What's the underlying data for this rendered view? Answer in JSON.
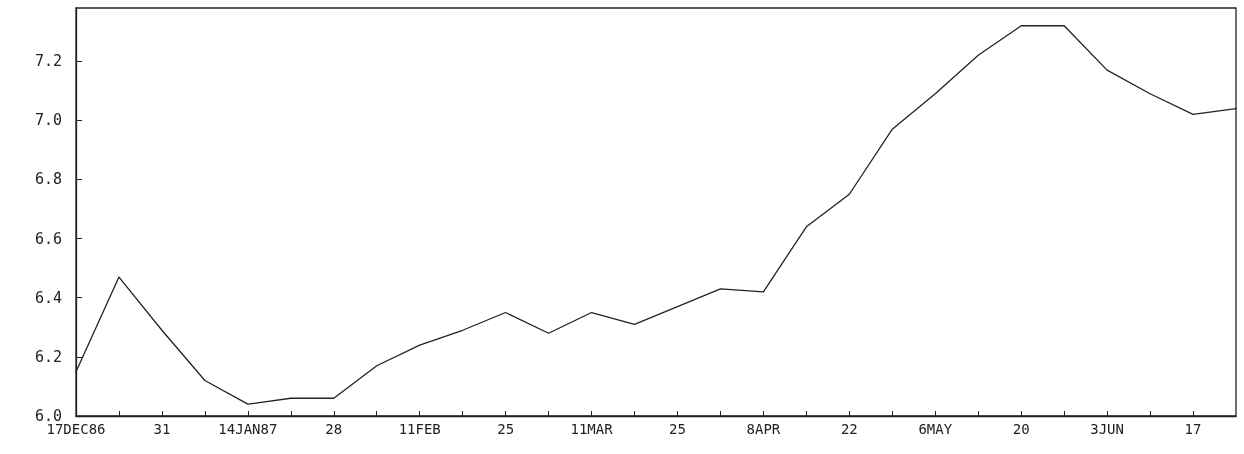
{
  "chart_data": {
    "type": "line",
    "color": "#222222",
    "marker": "none",
    "line_style": "solid",
    "grid": false,
    "x": [
      "1986-12-17",
      "1986-12-24",
      "1986-12-31",
      "1987-01-07",
      "1987-01-14",
      "1987-01-21",
      "1987-01-28",
      "1987-02-04",
      "1987-02-11",
      "1987-02-18",
      "1987-02-25",
      "1987-03-04",
      "1987-03-11",
      "1987-03-18",
      "1987-03-25",
      "1987-04-01",
      "1987-04-08",
      "1987-04-15",
      "1987-04-22",
      "1987-04-29",
      "1987-05-06",
      "1987-05-13",
      "1987-05-20",
      "1987-05-27",
      "1987-06-03",
      "1987-06-10",
      "1987-06-17",
      "1987-06-24"
    ],
    "values": [
      6.15,
      6.47,
      6.29,
      6.12,
      6.04,
      6.06,
      6.06,
      6.17,
      6.24,
      6.29,
      6.35,
      6.28,
      6.35,
      6.31,
      6.37,
      6.43,
      6.42,
      6.64,
      6.75,
      6.97,
      7.09,
      7.22,
      7.32,
      7.32,
      7.17,
      7.09,
      7.02,
      7.04
    ],
    "xlim": [
      "1986-12-17",
      "1987-06-24"
    ],
    "xticks": [
      {
        "value": "1986-12-17",
        "label": "17DEC86"
      },
      {
        "value": "1986-12-24",
        "label": null
      },
      {
        "value": "1986-12-31",
        "label": "31"
      },
      {
        "value": "1987-01-07",
        "label": null
      },
      {
        "value": "1987-01-14",
        "label": "14JAN87"
      },
      {
        "value": "1987-01-21",
        "label": null
      },
      {
        "value": "1987-01-28",
        "label": "28"
      },
      {
        "value": "1987-02-04",
        "label": null
      },
      {
        "value": "1987-02-11",
        "label": "11FEB"
      },
      {
        "value": "1987-02-18",
        "label": null
      },
      {
        "value": "1987-02-25",
        "label": "25"
      },
      {
        "value": "1987-03-04",
        "label": null
      },
      {
        "value": "1987-03-11",
        "label": "11MAR"
      },
      {
        "value": "1987-03-18",
        "label": null
      },
      {
        "value": "1987-03-25",
        "label": "25"
      },
      {
        "value": "1987-04-01",
        "label": null
      },
      {
        "value": "1987-04-08",
        "label": "8APR"
      },
      {
        "value": "1987-04-15",
        "label": null
      },
      {
        "value": "1987-04-22",
        "label": "22"
      },
      {
        "value": "1987-04-29",
        "label": null
      },
      {
        "value": "1987-05-06",
        "label": "6MAY"
      },
      {
        "value": "1987-05-13",
        "label": null
      },
      {
        "value": "1987-05-20",
        "label": "20"
      },
      {
        "value": "1987-05-27",
        "label": null
      },
      {
        "value": "1987-06-03",
        "label": "3JUN"
      },
      {
        "value": "1987-06-10",
        "label": null
      },
      {
        "value": "1987-06-17",
        "label": "17"
      }
    ],
    "ylim": [
      6.0,
      7.38
    ],
    "yticks": [
      {
        "value": 6.0,
        "label": "6.0"
      },
      {
        "value": 6.2,
        "label": "6.2"
      },
      {
        "value": 6.4,
        "label": "6.4"
      },
      {
        "value": 6.6,
        "label": "6.6"
      },
      {
        "value": 6.8,
        "label": "6.8"
      },
      {
        "value": 7.0,
        "label": "7.0"
      },
      {
        "value": 7.2,
        "label": "7.2"
      }
    ]
  }
}
